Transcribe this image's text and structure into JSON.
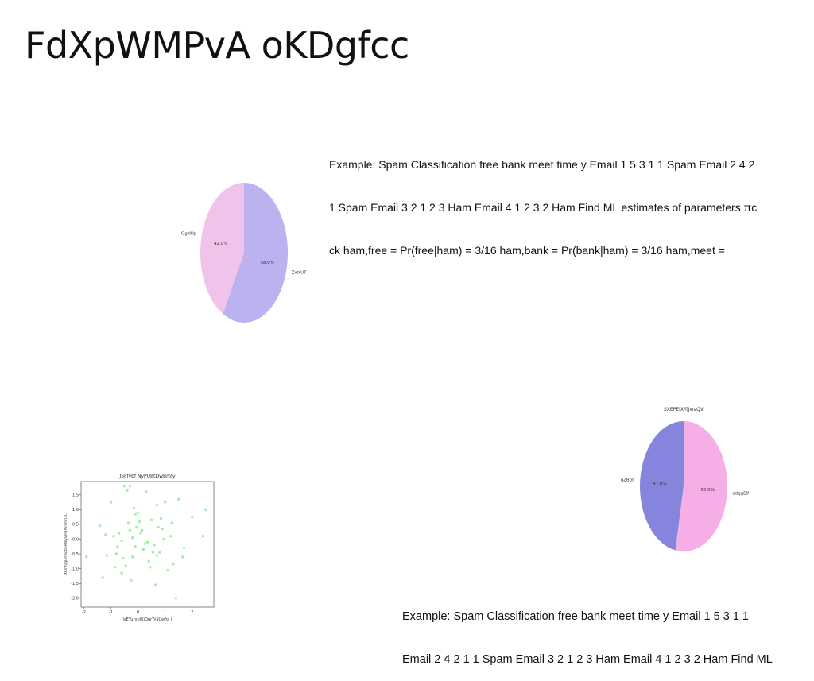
{
  "slide": {
    "title": "FdXpWMPvA oKDgfcc",
    "text_top": [
      "Example: Spam Classification free bank meet time y Email 1 5 3 1 1 Spam Email 2 4 2",
      "1 Spam Email 3 2 1 2 3 Ham Email 4 1 2 3 2 Ham Find ML estimates of parameters πc",
      "ck ham,free = Pr(free|ham) = 3/16 ham,bank = Pr(bank|ham) = 3/16 ham,meet ="
    ],
    "text_bottom": [
      "Example: Spam Classification free bank meet time y Email 1 5 3 1 1",
      "Email 2 4 2 1 1 Spam Email 3 2 1 2 3 Ham Email 4 1 2 3 2 Ham Find ML"
    ]
  },
  "colors": {
    "pie1_a": "#f0c4ea",
    "pie1_b": "#bdb2f0",
    "pie2_a": "#8585de",
    "pie2_b": "#f5aee6",
    "scatter_point": "#90ee90"
  },
  "chart_data": [
    {
      "type": "pie",
      "title": "",
      "labels": [
        "OgNUp",
        "ZxtrUT"
      ],
      "values": [
        42.0,
        58.0
      ],
      "value_labels": [
        "42.0%",
        "58.0%"
      ]
    },
    {
      "type": "pie",
      "title": "SXEPEIX/fjJwaQV",
      "labels": [
        "gZBbh",
        "odqgEWy"
      ],
      "values": [
        47.0,
        53.0
      ],
      "value_labels": [
        "47.0%",
        "53.0%"
      ]
    },
    {
      "type": "scatter",
      "title": "JSFfvbf NyPUBtDwBmfy",
      "xlabel": "jsEYurvuWjOqrTySCwfoj l",
      "ylabel": "XkmhJqDmsqbnRWyVmTKcFmrDL",
      "xlim": [
        -2.1,
        2.8
      ],
      "ylim": [
        -2.3,
        1.95
      ],
      "xticks": [
        "-2",
        "-1",
        "0",
        "1",
        "2"
      ],
      "yticks": [
        "1.5",
        "1.0",
        "0.5",
        "0.0",
        "-0.5",
        "-1.0",
        "-1.5",
        "-2.0"
      ],
      "x": [
        -1.4,
        -1.3,
        -1.15,
        -0.9,
        -0.8,
        -0.7,
        -0.6,
        -0.5,
        -0.45,
        -0.35,
        -0.3,
        -0.25,
        -0.2,
        -0.15,
        -0.1,
        -0.05,
        0.0,
        0.1,
        0.2,
        0.3,
        0.4,
        0.5,
        0.6,
        0.7,
        0.8,
        0.9,
        1.0,
        1.1,
        1.2,
        1.3,
        1.5,
        1.7,
        2.0,
        2.5,
        -1.0,
        -0.6,
        0.05,
        0.35,
        0.65,
        0.95,
        1.25,
        -0.75,
        -0.2,
        0.55,
        -1.2,
        -0.4,
        0.15,
        0.45,
        0.85,
        1.4,
        2.4,
        -0.55,
        -0.1,
        0.25,
        0.7,
        -0.85,
        1.65,
        -1.9,
        -0.3,
        0.75
      ],
      "y": [
        0.45,
        -1.3,
        -0.55,
        0.1,
        -0.5,
        0.2,
        -0.05,
        1.8,
        -0.9,
        0.55,
        0.3,
        -1.4,
        0.05,
        1.05,
        -0.25,
        0.4,
        0.9,
        0.2,
        -0.35,
        1.6,
        -0.75,
        0.65,
        -0.2,
        1.15,
        -0.45,
        0.35,
        1.25,
        -1.05,
        0.1,
        -0.85,
        1.35,
        -0.3,
        0.75,
        1.0,
        1.25,
        -1.15,
        0.6,
        -0.1,
        -1.55,
        0.0,
        0.55,
        -0.25,
        -0.6,
        -0.45,
        0.15,
        1.65,
        0.3,
        -0.95,
        0.7,
        -2.0,
        0.1,
        -0.65,
        0.85,
        -0.15,
        -0.55,
        -0.95,
        -0.6,
        -0.6,
        1.8,
        0.4
      ]
    }
  ]
}
